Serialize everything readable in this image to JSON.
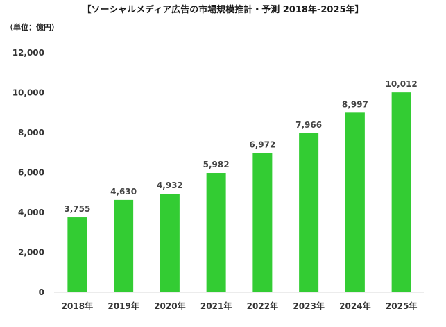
{
  "title": "【ソーシャルメディア広告の市場規模推計・予測 2018年-2025年】",
  "unit_label": "（単位：億円）",
  "colors": {
    "bar": "#33cc33",
    "axis": "#d9d9d9"
  },
  "chart_data": {
    "type": "bar",
    "title": "【ソーシャルメディア広告の市場規模推計・予測 2018年-2025年】",
    "categories": [
      "2018年",
      "2019年",
      "2020年",
      "2021年",
      "2022年",
      "2023年",
      "2024年",
      "2025年"
    ],
    "values": [
      3755,
      4630,
      4932,
      5982,
      6972,
      7966,
      8997,
      10012
    ],
    "value_labels": [
      "3,755",
      "4,630",
      "4,932",
      "5,982",
      "6,972",
      "7,966",
      "8,997",
      "10,012"
    ],
    "ylim": [
      0,
      12000
    ],
    "yticks": [
      0,
      2000,
      4000,
      6000,
      8000,
      10000,
      12000
    ],
    "ytick_labels": [
      "0",
      "2,000",
      "4,000",
      "6,000",
      "8,000",
      "10,000",
      "12,000"
    ],
    "grid": false,
    "legend": "none"
  }
}
